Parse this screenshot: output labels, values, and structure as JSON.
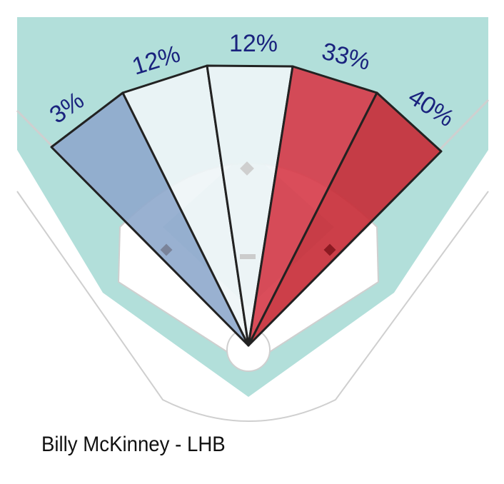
{
  "chart_data": {
    "type": "spray-chart",
    "title": "Billy McKinney - LHB",
    "zones": [
      {
        "value": "3%",
        "color": "#8ea9cc"
      },
      {
        "value": "12%",
        "color": "#eef5f7"
      },
      {
        "value": "12%",
        "color": "#eef5f7"
      },
      {
        "value": "33%",
        "color": "#d63a48"
      },
      {
        "value": "40%",
        "color": "#c72a35"
      }
    ],
    "label_color": "#1a237e",
    "field_color": "#b2dfda"
  }
}
